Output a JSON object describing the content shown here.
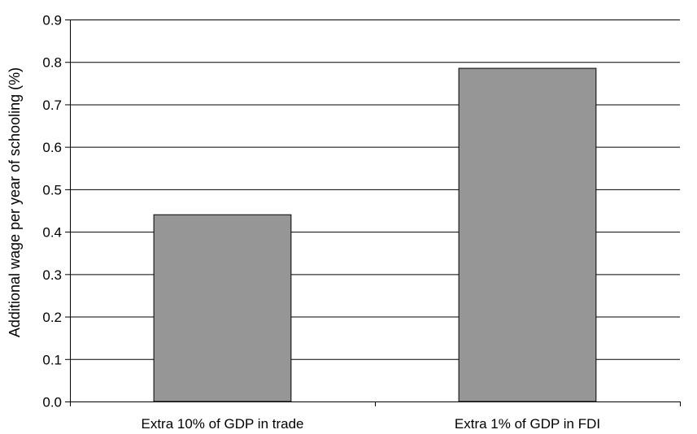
{
  "chart_data": {
    "type": "bar",
    "title": "",
    "xlabel": "",
    "ylabel": "Additional wage per year of schooling (%)",
    "categories": [
      "Extra 10% of GDP in trade",
      "Extra 1% of GDP in FDI"
    ],
    "values": [
      0.44,
      0.785
    ],
    "ylim": [
      0,
      0.9
    ],
    "yticks": [
      0.0,
      0.1,
      0.2,
      0.3,
      0.4,
      0.5,
      0.6,
      0.7,
      0.8,
      0.9
    ],
    "ytick_labels": [
      "0.0",
      "0.1",
      "0.2",
      "0.3",
      "0.4",
      "0.5",
      "0.6",
      "0.7",
      "0.8",
      "0.9"
    ],
    "grid": true,
    "legend": "none",
    "bar_color": "#969696",
    "bar_edge_color": "#000000",
    "gridline_color": "#000000"
  }
}
